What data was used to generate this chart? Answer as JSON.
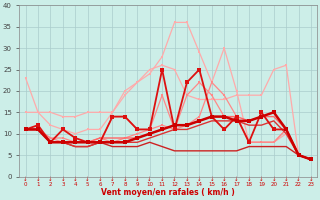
{
  "xlabel": "Vent moyen/en rafales ( km/h )",
  "xlabel_color": "#cc0000",
  "bg_color": "#cceee8",
  "grid_color": "#aacccc",
  "xlim_min": -0.5,
  "xlim_max": 23.5,
  "ylim": [
    0,
    40
  ],
  "yticks": [
    0,
    5,
    10,
    15,
    20,
    25,
    30,
    35,
    40
  ],
  "xticks": [
    0,
    1,
    2,
    3,
    4,
    5,
    6,
    7,
    8,
    9,
    10,
    11,
    12,
    13,
    14,
    15,
    16,
    17,
    18,
    19,
    20,
    21,
    22,
    23
  ],
  "series": [
    {
      "y": [
        23,
        15,
        15,
        14,
        14,
        15,
        15,
        15,
        19,
        22,
        25,
        26,
        25,
        19,
        18,
        18,
        18,
        19,
        19,
        19,
        25,
        26,
        5,
        4
      ],
      "color": "#ffaaaa",
      "lw": 0.9,
      "marker": "s",
      "ms": 2.0,
      "zorder": 3
    },
    {
      "y": [
        15,
        15,
        12,
        11,
        10,
        11,
        11,
        15,
        20,
        22,
        24,
        28,
        36,
        36,
        29,
        22,
        30,
        20,
        8,
        8,
        8,
        10,
        5,
        4
      ],
      "color": "#ffaaaa",
      "lw": 0.9,
      "marker": "s",
      "ms": 2.0,
      "zorder": 3
    },
    {
      "y": [
        11,
        11,
        9,
        9,
        8,
        8,
        9,
        8,
        9,
        10,
        11,
        19,
        11,
        19,
        22,
        19,
        14,
        14,
        8,
        8,
        8,
        11,
        5,
        4
      ],
      "color": "#ff8888",
      "lw": 0.9,
      "marker": "s",
      "ms": 2.0,
      "zorder": 4
    },
    {
      "y": [
        11,
        11,
        9,
        8,
        8,
        8,
        8,
        14,
        14,
        11,
        11,
        12,
        11,
        12,
        14,
        22,
        19,
        14,
        8,
        8,
        8,
        11,
        5,
        4
      ],
      "color": "#ff8888",
      "lw": 0.9,
      "marker": "s",
      "ms": 2.0,
      "zorder": 4
    },
    {
      "y": [
        11,
        12,
        8,
        11,
        9,
        8,
        8,
        14,
        14,
        11,
        11,
        25,
        11,
        22,
        25,
        14,
        11,
        14,
        8,
        15,
        11,
        11,
        5,
        4
      ],
      "color": "#dd1111",
      "lw": 1.3,
      "marker": "s",
      "ms": 2.5,
      "zorder": 5
    },
    {
      "y": [
        11,
        11,
        8,
        8,
        8,
        8,
        8,
        8,
        8,
        9,
        10,
        11,
        12,
        12,
        13,
        14,
        14,
        13,
        13,
        14,
        15,
        11,
        5,
        4
      ],
      "color": "#cc0000",
      "lw": 1.8,
      "marker": "s",
      "ms": 2.5,
      "zorder": 6
    },
    {
      "y": [
        11,
        11,
        8,
        8,
        8,
        8,
        9,
        9,
        9,
        9,
        10,
        11,
        12,
        12,
        13,
        14,
        14,
        14,
        13,
        14,
        14,
        11,
        5,
        4
      ],
      "color": "#ff6666",
      "lw": 1.0,
      "marker": null,
      "ms": 0,
      "zorder": 4
    },
    {
      "y": [
        11,
        11,
        8,
        8,
        7,
        7,
        8,
        8,
        8,
        8,
        9,
        10,
        11,
        11,
        12,
        13,
        13,
        13,
        12,
        12,
        13,
        10,
        5,
        4
      ],
      "color": "#dd3333",
      "lw": 1.0,
      "marker": null,
      "ms": 0,
      "zorder": 4
    },
    {
      "y": [
        11,
        11,
        8,
        8,
        7,
        7,
        8,
        7,
        7,
        7,
        8,
        7,
        6,
        6,
        6,
        6,
        6,
        6,
        7,
        7,
        7,
        7,
        5,
        4
      ],
      "color": "#cc2222",
      "lw": 1.0,
      "marker": null,
      "ms": 0,
      "zorder": 3
    }
  ],
  "arrow_color": "#cc0000",
  "tick_color": "#444444"
}
